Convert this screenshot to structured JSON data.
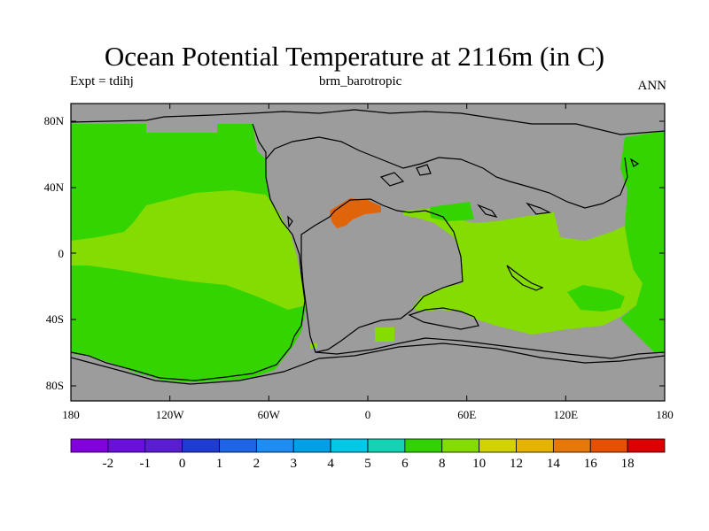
{
  "title": "Ocean Potential Temperature at 2116m (in C)",
  "left_label": "Expt = tdihj",
  "center_label": "brm_barotropic",
  "right_label": "ANN",
  "map": {
    "projection": "cylindrical equidistant",
    "lon_ticks": [
      "180",
      "120W",
      "60W",
      "0",
      "60E",
      "120E",
      "180"
    ],
    "lat_ticks": [
      "80N",
      "40N",
      "0",
      "40S",
      "80S"
    ],
    "land_color": "#9c9c9c",
    "field_colors": {
      "6-8": "#33d400",
      "8-10": "#84dc00",
      "16-18": "#e0640a"
    }
  },
  "colorbar": {
    "labels": [
      "-2",
      "-1",
      "0",
      "1",
      "2",
      "3",
      "4",
      "5",
      "6",
      "8",
      "10",
      "12",
      "14",
      "16",
      "18"
    ],
    "colors": [
      "#8200dc",
      "#6a0fdc",
      "#5a1ed2",
      "#1e3cd2",
      "#1e64e6",
      "#1e8cf0",
      "#00a0e6",
      "#00c8e6",
      "#14d2b4",
      "#32d200",
      "#84dc00",
      "#d2d200",
      "#e6b400",
      "#e6780a",
      "#e65000",
      "#dc0000"
    ]
  }
}
